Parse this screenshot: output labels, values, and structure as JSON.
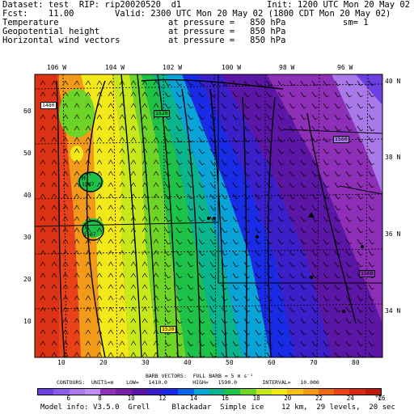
{
  "header": {
    "dataset": "Dataset: test  RIP: rip20020520  d1",
    "init": "Init: 1200 UTC Mon 20 May 02",
    "fcst": "Fcst:    11.00",
    "valid": "Valid: 2300 UTC Mon 20 May 02 (1800 CDT Mon 20 May 02)",
    "fields": [
      {
        "name": "Temperature",
        "at": "at pressure =   850 hPa",
        "extra": "sm= 1"
      },
      {
        "name": "Geopotential height",
        "at": "at pressure =   850 hPa",
        "extra": ""
      },
      {
        "name": "Horizontal wind vectors",
        "at": "at pressure =   850 hPa",
        "extra": ""
      }
    ]
  },
  "map": {
    "lon_labels": [
      "106 W",
      "104 W",
      "102 W",
      "100 W",
      "98 W",
      "96 W"
    ],
    "lat_labels": [
      "40 N",
      "38 N",
      "36 N",
      "34 N"
    ],
    "y_ticks": [
      "60",
      "50",
      "40",
      "30",
      "20",
      "10"
    ],
    "x_ticks": [
      "10",
      "20",
      "30",
      "40",
      "50",
      "60",
      "70",
      "80"
    ],
    "contour_labels": [
      "1480",
      "1520",
      "1560",
      "1560",
      "1520",
      "1507",
      "1507"
    ],
    "high_markers": [
      "H",
      "H"
    ]
  },
  "footer": {
    "barb_line": "BARB VECTORS:  FULL BARB = 5 m s⁻¹",
    "contour_line": "CONTOURS:  UNITS=m    LOW=   1410.0        HIGH=   1590.0        INTERVAL=   10.000",
    "colorbar_labels": [
      "6",
      "8",
      "10",
      "12",
      "14",
      "16",
      "18",
      "20",
      "22",
      "24",
      "26"
    ],
    "colorbar_unit": "°C",
    "colorbar_colors": [
      "#6c3fe0",
      "#8a5fe6",
      "#a979ea",
      "#c08ef0",
      "#8e2fb8",
      "#7a1fa8",
      "#5b16a6",
      "#3b1fc8",
      "#1a2be6",
      "#0a64e8",
      "#0aa3d8",
      "#0ab58e",
      "#1ec248",
      "#6fd428",
      "#c8e81c",
      "#f2e81a",
      "#f4c21a",
      "#f29a1a",
      "#ee6a14",
      "#e8421a",
      "#d42a14",
      "#c0180e"
    ],
    "model_info": "Model info: V3.5.0  Grell     Blackadar  Simple ice    12 km,  29 levels,  20 sec"
  }
}
